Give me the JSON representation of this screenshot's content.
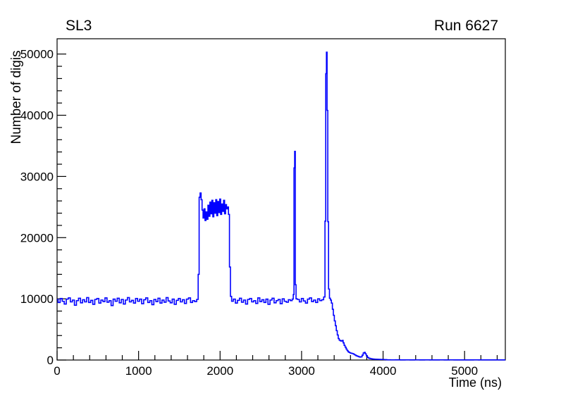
{
  "page": {
    "background": "#ffffff"
  },
  "chart_data": {
    "type": "line",
    "style": "histogram-step",
    "title": "SL3",
    "annotation": "Run 6627",
    "xlabel": "Time (ns)",
    "ylabel": "Number of digis",
    "xlim": [
      0,
      5500
    ],
    "ylim": [
      0,
      52500
    ],
    "x_major_ticks": [
      0,
      1000,
      2000,
      3000,
      4000,
      5000
    ],
    "x_minor_step": 200,
    "y_major_ticks": [
      0,
      10000,
      20000,
      30000,
      40000,
      50000
    ],
    "y_minor_step": 2000,
    "grid": false,
    "legend": false,
    "line_color": "#0000ff",
    "axis_color": "#000000",
    "points": [
      [
        0,
        9900
      ],
      [
        25,
        9400
      ],
      [
        50,
        10050
      ],
      [
        75,
        9600
      ],
      [
        100,
        9150
      ],
      [
        125,
        9950
      ],
      [
        150,
        10150
      ],
      [
        175,
        9500
      ],
      [
        200,
        9800
      ],
      [
        225,
        8950
      ],
      [
        250,
        9700
      ],
      [
        275,
        10100
      ],
      [
        300,
        9350
      ],
      [
        325,
        9850
      ],
      [
        350,
        9500
      ],
      [
        375,
        10200
      ],
      [
        400,
        9400
      ],
      [
        425,
        9750
      ],
      [
        450,
        9100
      ],
      [
        475,
        9900
      ],
      [
        500,
        10050
      ],
      [
        525,
        9300
      ],
      [
        550,
        9800
      ],
      [
        575,
        9550
      ],
      [
        600,
        10150
      ],
      [
        625,
        9450
      ],
      [
        650,
        9700
      ],
      [
        675,
        8900
      ],
      [
        700,
        9950
      ],
      [
        725,
        9600
      ],
      [
        750,
        10100
      ],
      [
        775,
        9350
      ],
      [
        800,
        9900
      ],
      [
        825,
        9150
      ],
      [
        850,
        9800
      ],
      [
        875,
        10200
      ],
      [
        900,
        9500
      ],
      [
        925,
        9750
      ],
      [
        950,
        9300
      ],
      [
        975,
        10050
      ],
      [
        1000,
        9600
      ],
      [
        1025,
        9950
      ],
      [
        1050,
        9200
      ],
      [
        1075,
        9850
      ],
      [
        1100,
        10150
      ],
      [
        1125,
        9400
      ],
      [
        1150,
        9700
      ],
      [
        1175,
        9050
      ],
      [
        1200,
        9900
      ],
      [
        1225,
        9550
      ],
      [
        1250,
        10100
      ],
      [
        1275,
        9300
      ],
      [
        1300,
        9800
      ],
      [
        1325,
        9450
      ],
      [
        1350,
        10200
      ],
      [
        1375,
        9650
      ],
      [
        1400,
        9350
      ],
      [
        1425,
        9950
      ],
      [
        1450,
        9100
      ],
      [
        1475,
        9750
      ],
      [
        1500,
        10050
      ],
      [
        1525,
        9500
      ],
      [
        1550,
        9850
      ],
      [
        1575,
        9250
      ],
      [
        1600,
        9950
      ],
      [
        1625,
        10150
      ],
      [
        1650,
        9400
      ],
      [
        1675,
        9700
      ],
      [
        1700,
        9550
      ],
      [
        1725,
        9900
      ],
      [
        1737,
        14000
      ],
      [
        1749,
        26600
      ],
      [
        1761,
        27300
      ],
      [
        1773,
        26200
      ],
      [
        1785,
        24500
      ],
      [
        1797,
        23200
      ],
      [
        1809,
        24700
      ],
      [
        1821,
        22800
      ],
      [
        1833,
        24200
      ],
      [
        1845,
        23000
      ],
      [
        1857,
        25300
      ],
      [
        1869,
        23500
      ],
      [
        1881,
        25800
      ],
      [
        1893,
        23900
      ],
      [
        1905,
        26100
      ],
      [
        1917,
        23400
      ],
      [
        1929,
        25700
      ],
      [
        1941,
        24000
      ],
      [
        1953,
        26200
      ],
      [
        1965,
        23600
      ],
      [
        1977,
        25900
      ],
      [
        1989,
        24100
      ],
      [
        2001,
        26300
      ],
      [
        2013,
        23800
      ],
      [
        2025,
        25500
      ],
      [
        2037,
        24300
      ],
      [
        2049,
        26100
      ],
      [
        2061,
        23900
      ],
      [
        2073,
        25400
      ],
      [
        2085,
        24700
      ],
      [
        2097,
        25000
      ],
      [
        2109,
        23800
      ],
      [
        2121,
        15200
      ],
      [
        2133,
        10400
      ],
      [
        2150,
        9600
      ],
      [
        2175,
        9950
      ],
      [
        2200,
        9300
      ],
      [
        2225,
        9750
      ],
      [
        2250,
        10100
      ],
      [
        2275,
        9450
      ],
      [
        2300,
        9800
      ],
      [
        2325,
        9150
      ],
      [
        2350,
        9900
      ],
      [
        2375,
        10050
      ],
      [
        2400,
        9500
      ],
      [
        2425,
        9700
      ],
      [
        2450,
        9250
      ],
      [
        2475,
        10150
      ],
      [
        2500,
        9550
      ],
      [
        2525,
        9850
      ],
      [
        2550,
        9400
      ],
      [
        2575,
        9950
      ],
      [
        2600,
        9100
      ],
      [
        2625,
        9800
      ],
      [
        2650,
        10100
      ],
      [
        2675,
        9350
      ],
      [
        2700,
        9700
      ],
      [
        2725,
        9900
      ],
      [
        2750,
        9200
      ],
      [
        2775,
        10000
      ],
      [
        2800,
        9600
      ],
      [
        2825,
        9450
      ],
      [
        2850,
        9850
      ],
      [
        2875,
        9700
      ],
      [
        2893,
        9950
      ],
      [
        2903,
        10700
      ],
      [
        2911,
        31400
      ],
      [
        2919,
        34100
      ],
      [
        2927,
        12300
      ],
      [
        2937,
        10000
      ],
      [
        2960,
        9900
      ],
      [
        2985,
        9500
      ],
      [
        3010,
        10050
      ],
      [
        3035,
        9650
      ],
      [
        3060,
        9300
      ],
      [
        3085,
        9950
      ],
      [
        3110,
        10150
      ],
      [
        3135,
        9550
      ],
      [
        3160,
        9800
      ],
      [
        3185,
        9400
      ],
      [
        3210,
        10000
      ],
      [
        3235,
        9700
      ],
      [
        3260,
        9850
      ],
      [
        3282,
        10300
      ],
      [
        3292,
        22700
      ],
      [
        3301,
        46800
      ],
      [
        3309,
        50300
      ],
      [
        3317,
        40800
      ],
      [
        3326,
        22600
      ],
      [
        3336,
        11600
      ],
      [
        3348,
        10100
      ],
      [
        3360,
        9800
      ],
      [
        3372,
        9300
      ],
      [
        3384,
        8300
      ],
      [
        3396,
        7300
      ],
      [
        3408,
        6400
      ],
      [
        3420,
        5600
      ],
      [
        3432,
        4800
      ],
      [
        3444,
        4100
      ],
      [
        3456,
        3500
      ],
      [
        3468,
        3250
      ],
      [
        3480,
        3150
      ],
      [
        3492,
        3100
      ],
      [
        3504,
        3200
      ],
      [
        3516,
        2800
      ],
      [
        3528,
        2400
      ],
      [
        3540,
        2100
      ],
      [
        3552,
        1800
      ],
      [
        3564,
        1550
      ],
      [
        3576,
        1350
      ],
      [
        3588,
        1250
      ],
      [
        3600,
        1150
      ],
      [
        3615,
        1100
      ],
      [
        3630,
        1050
      ],
      [
        3645,
        950
      ],
      [
        3660,
        820
      ],
      [
        3675,
        700
      ],
      [
        3690,
        620
      ],
      [
        3705,
        540
      ],
      [
        3720,
        480
      ],
      [
        3735,
        520
      ],
      [
        3750,
        800
      ],
      [
        3762,
        1150
      ],
      [
        3775,
        1250
      ],
      [
        3788,
        1000
      ],
      [
        3800,
        700
      ],
      [
        3815,
        420
      ],
      [
        3830,
        300
      ],
      [
        3850,
        220
      ],
      [
        3875,
        170
      ],
      [
        3900,
        140
      ],
      [
        3925,
        120
      ],
      [
        3950,
        105
      ],
      [
        3975,
        95
      ],
      [
        4000,
        85
      ],
      [
        4030,
        60
      ],
      [
        4060,
        40
      ],
      [
        4120,
        30
      ],
      [
        4180,
        35
      ],
      [
        4240,
        25
      ],
      [
        4300,
        30
      ],
      [
        4360,
        20
      ],
      [
        4420,
        28
      ],
      [
        4480,
        22
      ],
      [
        4540,
        30
      ],
      [
        4600,
        25
      ],
      [
        4660,
        20
      ],
      [
        4720,
        28
      ],
      [
        4780,
        24
      ],
      [
        4840,
        30
      ],
      [
        4900,
        22
      ],
      [
        4960,
        26
      ],
      [
        5020,
        20
      ],
      [
        5080,
        25
      ],
      [
        5140,
        28
      ],
      [
        5200,
        22
      ],
      [
        5260,
        26
      ],
      [
        5320,
        20
      ],
      [
        5380,
        24
      ],
      [
        5440,
        22
      ],
      [
        5500,
        20
      ]
    ]
  }
}
